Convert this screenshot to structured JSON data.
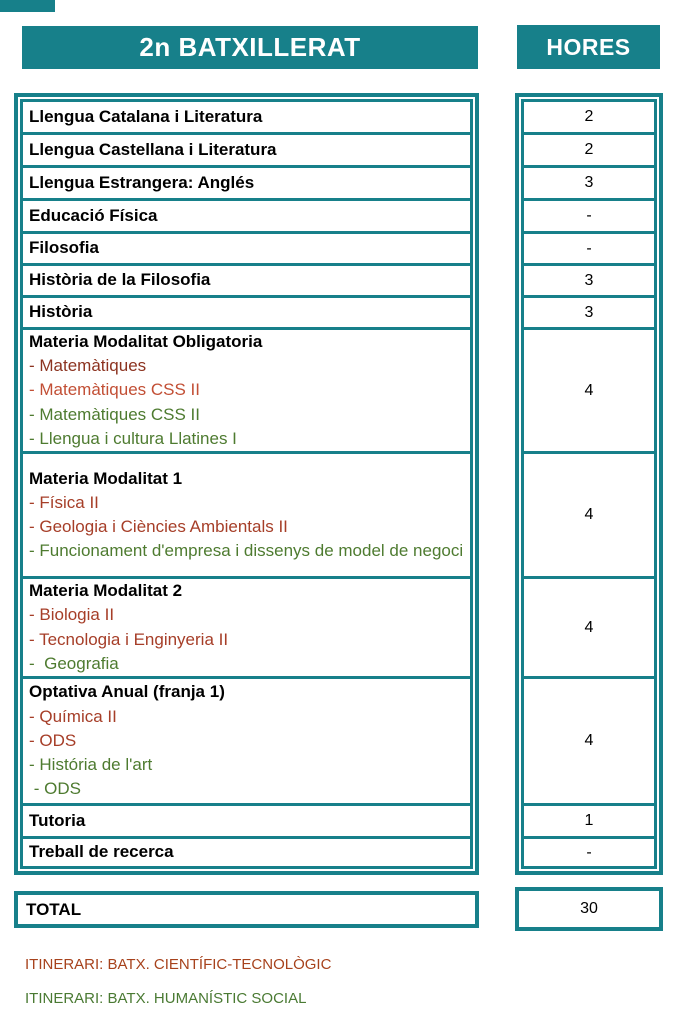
{
  "header": {
    "title": "2n BATXILLERAT",
    "hours_label": "HORES"
  },
  "colors": {
    "teal": "#17808A",
    "red_dark": "#8C3320",
    "red_bright": "#C24F35",
    "red": "#A63E28",
    "green": "#4E7B30",
    "legend_red": "#A7421C",
    "legend_green": "#4A7A33"
  },
  "rows": [
    {
      "title": "Llengua Catalana i Literatura",
      "hours": "2",
      "items": []
    },
    {
      "title": "Llengua Castellana i Literatura",
      "hours": "2",
      "items": []
    },
    {
      "title": "Llengua Estrangera: Anglés",
      "hours": "3",
      "items": []
    },
    {
      "title": "Educació Física",
      "hours": "-",
      "items": []
    },
    {
      "title": "Filosofia",
      "hours": "-",
      "items": []
    },
    {
      "title": "Història de la Filosofia",
      "hours": "3",
      "items": []
    },
    {
      "title": "Història",
      "hours": "3",
      "items": []
    },
    {
      "title": "Materia Modalitat Obligatoria",
      "hours": "4",
      "items": [
        {
          "text": "- Matemàtiques",
          "color": "red_dark"
        },
        {
          "text": "- Matemàtiques CSS II",
          "color": "red_bright"
        },
        {
          "text": "- Matemàtiques CSS II",
          "color": "green"
        },
        {
          "text": "- Llengua i cultura Llatines I",
          "color": "green"
        }
      ]
    },
    {
      "title": "Materia Modalitat 1",
      "hours": "4",
      "items": [
        {
          "text": "- Física II",
          "color": "red"
        },
        {
          "text": "- Geologia i Ciències Ambientals II",
          "color": "red"
        },
        {
          "text": "- Funcionament d'empresa i dissenys de model de negoci",
          "color": "green"
        }
      ]
    },
    {
      "title": "Materia Modalitat 2",
      "hours": "4",
      "items": [
        {
          "text": "- Biologia II",
          "color": "red"
        },
        {
          "text": "- Tecnologia i Enginyeria II",
          "color": "red"
        },
        {
          "text": "-  Geografia",
          "color": "green"
        }
      ]
    },
    {
      "title": "Optativa Anual (franja 1)",
      "hours": "4",
      "items": [
        {
          "text": "- Química II",
          "color": "red"
        },
        {
          "text": "- ODS",
          "color": "red"
        },
        {
          "text": "- História de l'art",
          "color": "green"
        },
        {
          "text": " - ODS",
          "color": "green"
        }
      ]
    },
    {
      "title": "Tutoria",
      "hours": "1",
      "items": []
    },
    {
      "title": "Treball de recerca",
      "hours": "-",
      "items": []
    }
  ],
  "total": {
    "label": "TOTAL",
    "hours": "30"
  },
  "legend": [
    {
      "text": "ITINERARI: BATX. CIENTÍFIC-TECNOLÒGIC",
      "color": "legend_red"
    },
    {
      "text": "ITINERARI: BATX. HUMANÍSTIC SOCIAL",
      "color": "legend_green"
    }
  ]
}
